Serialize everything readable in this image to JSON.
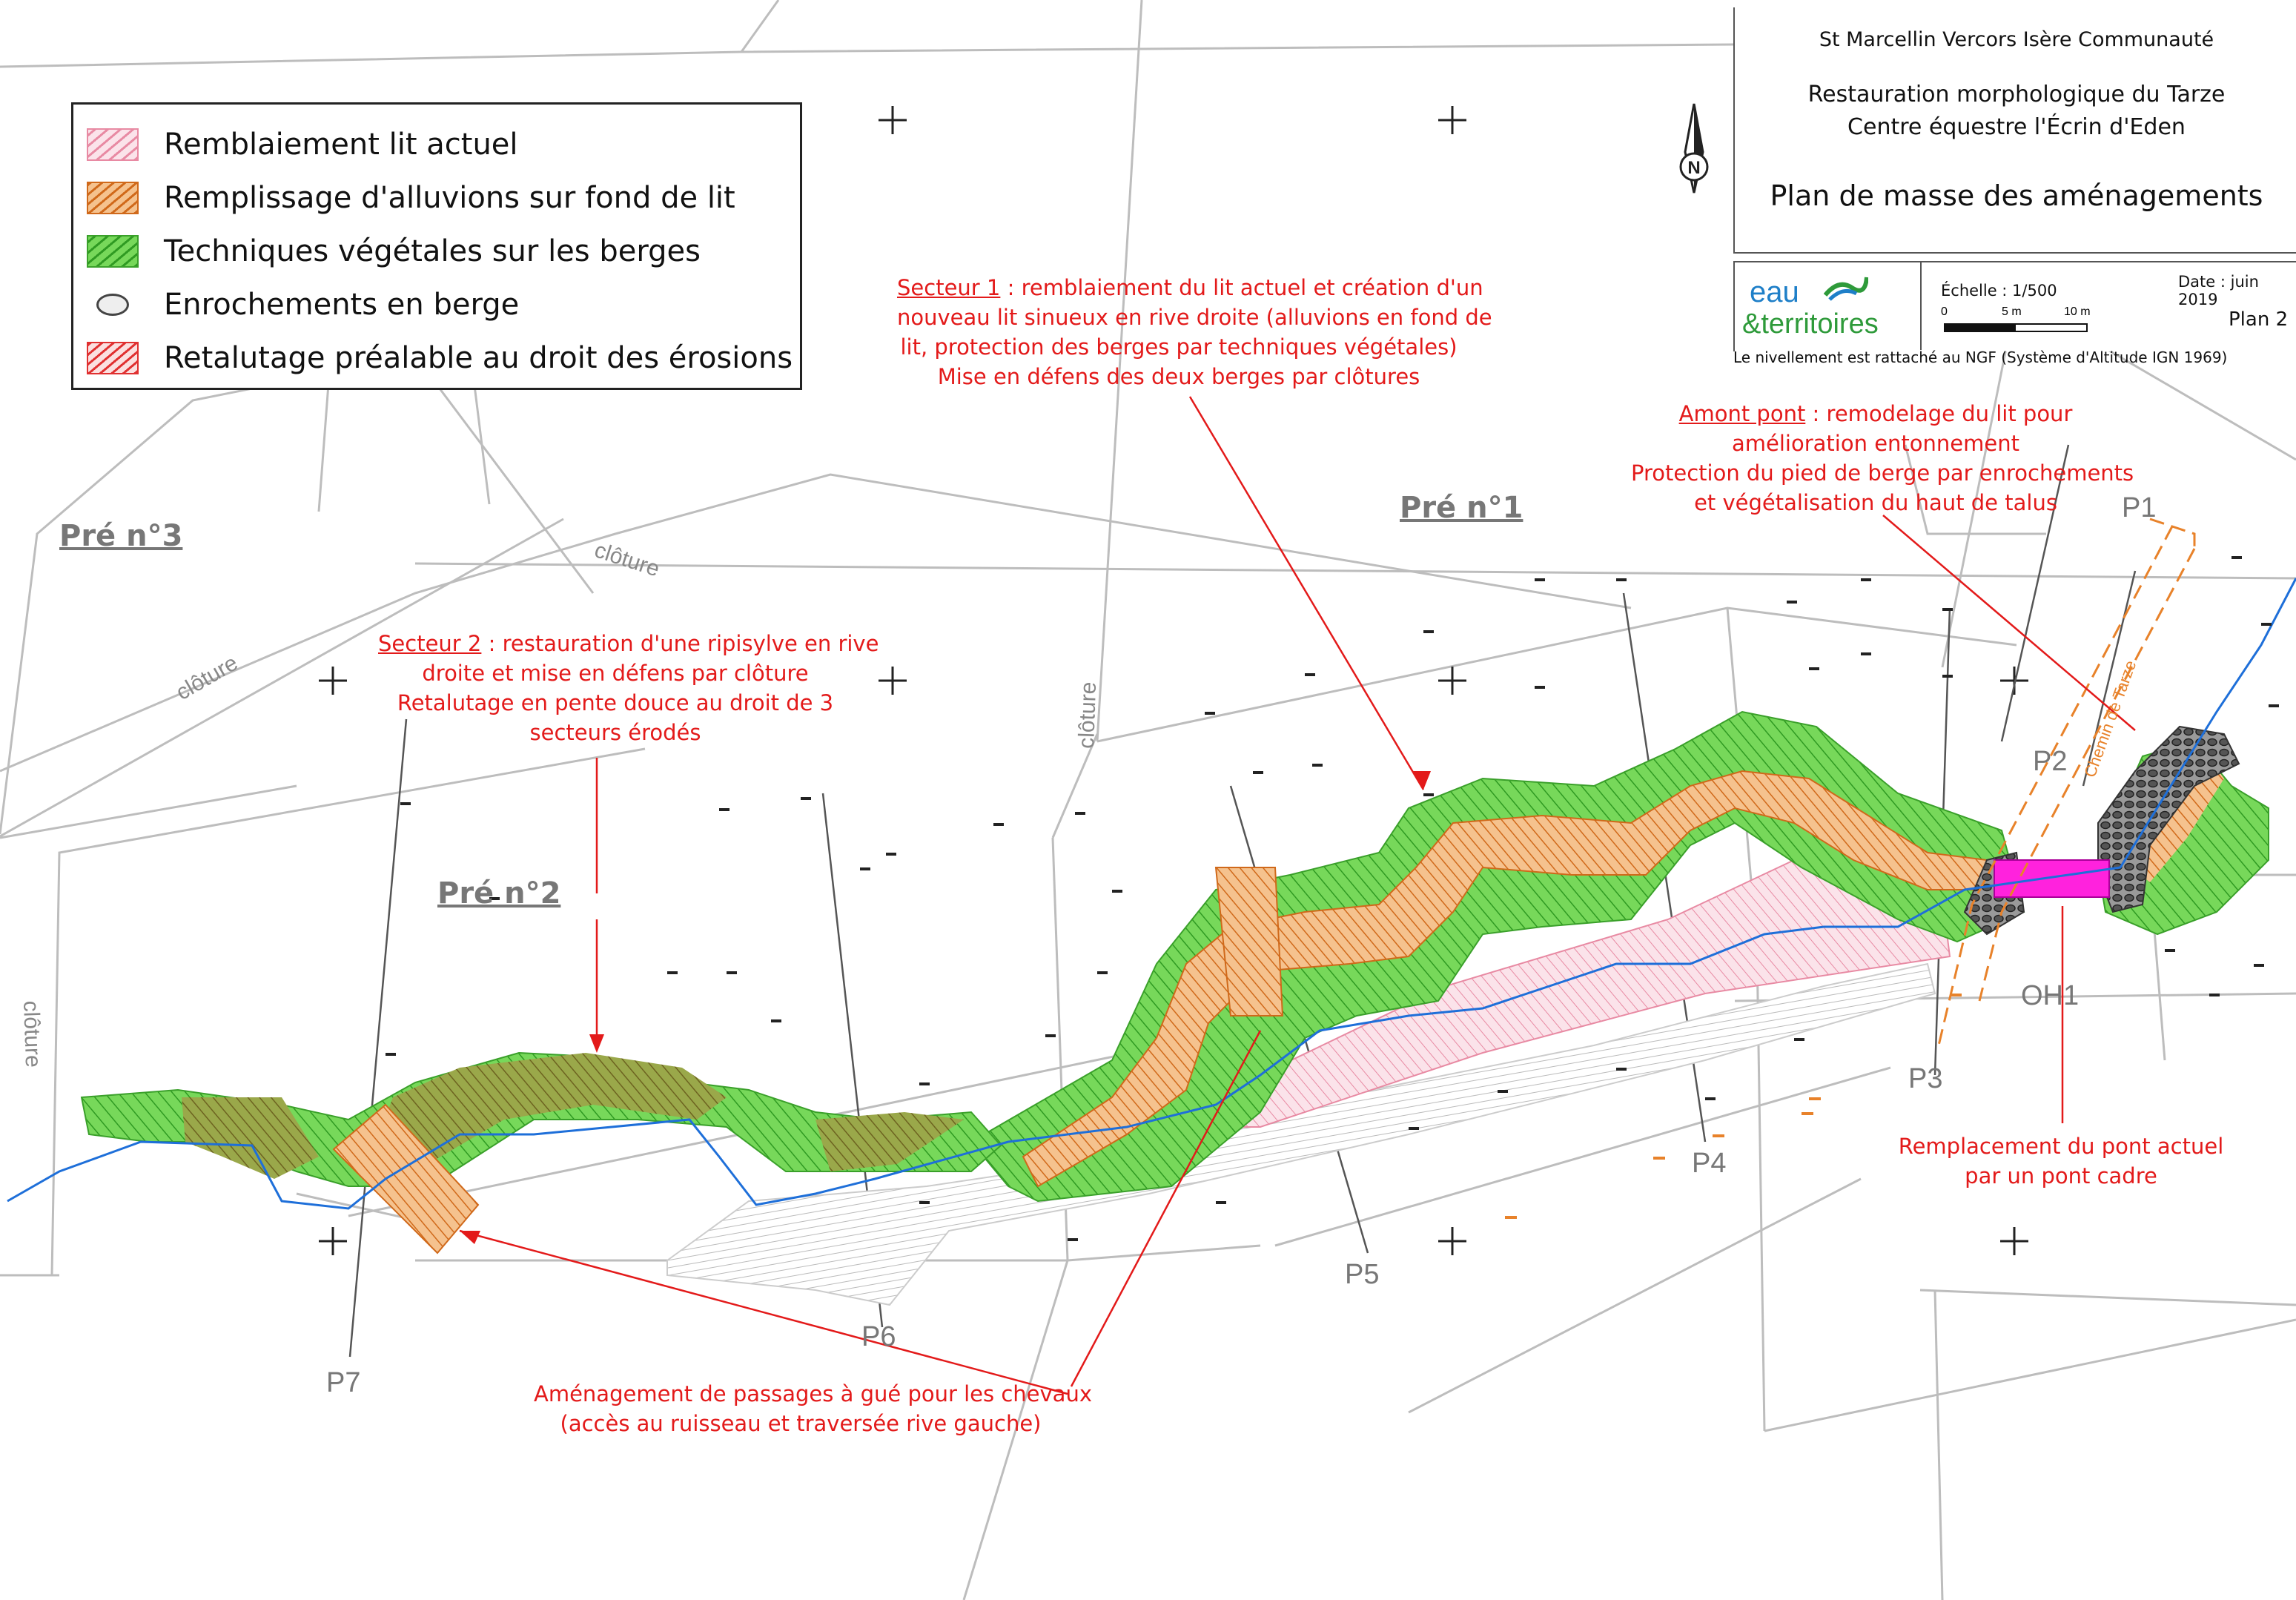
{
  "legend": {
    "items": [
      {
        "label": "Remblaiement lit actuel",
        "swatch": "pink-hatch",
        "color": "#f0a0b4"
      },
      {
        "label": "Remplissage d'alluvions sur fond de lit",
        "swatch": "orange-hatch",
        "color": "#e8822a"
      },
      {
        "label": "Techniques végétales sur les berges",
        "swatch": "green-hatch",
        "color": "#55c83c"
      },
      {
        "label": "Enrochements en berge",
        "swatch": "stone-icon",
        "color": "#888888"
      },
      {
        "label": "Retalutage préalable au droit des érosions",
        "swatch": "red-hatch",
        "color": "#e83030"
      }
    ]
  },
  "title_block": {
    "organisation": "St Marcellin Vercors Isère Communauté",
    "project_line1": "Restauration morphologique du Tarze",
    "project_line2": "Centre équestre l'Écrin d'Eden",
    "plan_title": "Plan de masse des aménagements",
    "scale_label": "Échelle : 1/500",
    "date_label": "Date : juin 2019",
    "plan_number": "Plan 2",
    "logo_text_1": "eau",
    "logo_text_2": "&territoires",
    "scalebar_0": "0",
    "scalebar_5": "5 m",
    "scalebar_10": "10 m",
    "ngf_note": "Le nivellement est rattaché au NGF (Système d'Altitude IGN 1969)",
    "north_letter": "N"
  },
  "annotations": {
    "secteur1": {
      "title": "Secteur 1",
      "line1": " : remblaiement du lit actuel et création d'un",
      "line2": "nouveau lit sinueux en rive droite (alluvions en fond de",
      "line3": "lit, protection des berges par techniques végétales)",
      "line4": "Mise en défens des deux berges par clôtures"
    },
    "secteur2": {
      "title": "Secteur 2",
      "line1": " : restauration d'une ripisylve en rive",
      "line2": "droite et mise en défens par clôture",
      "line3": "Retalutage en pente douce au droit de 3",
      "line4": "secteurs érodés"
    },
    "amont": {
      "title": "Amont pont",
      "line1": " : remodelage du lit pour",
      "line2": "amélioration entonnement",
      "line3": "Protection du pied de berge par enrochements",
      "line4": "et végétalisation du haut de talus"
    },
    "pont": {
      "line1": "Remplacement du pont actuel",
      "line2": "par un pont cadre"
    },
    "gue": {
      "line1": "Aménagement de passages à gué pour les chevaux",
      "line2": "(accès au ruisseau et traversée rive gauche)"
    }
  },
  "places": {
    "pre1": "Pré n°1",
    "pre2": "Pré n°2",
    "pre3": "Pré n°3",
    "cloture": "clôture",
    "road": "Chemin de Tarze"
  },
  "profiles": {
    "p1": "P1",
    "p2": "P2",
    "p3": "P3",
    "p4": "P4",
    "p5": "P5",
    "p6": "P6",
    "p7": "P7",
    "oh1": "OH1"
  },
  "colors": {
    "annotation": "#e31a1a",
    "river": "#1e6fd9",
    "green": "#55c83c",
    "orange": "#e8822a",
    "pink": "#f0a0b4",
    "bridge": "#ff22dd",
    "parcel_lines": "#bbbbbb"
  }
}
